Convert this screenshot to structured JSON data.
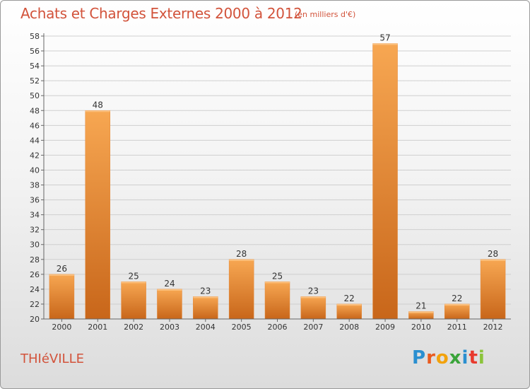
{
  "header": {
    "title": "Achats et Charges Externes 2000 à 2012",
    "subtitle": "(en milliers d'€)"
  },
  "footer": {
    "town": "THIéVILLE",
    "logo": "Proxiti"
  },
  "colors": {
    "title": "#d2533b",
    "bar_light": "#f7a752",
    "bar_dark": "#c8661a",
    "grid": "#cfcfcf",
    "axis": "#666666"
  },
  "chart_data": {
    "type": "bar",
    "title": "Achats et Charges Externes 2000 à 2012",
    "xlabel": "",
    "ylabel": "",
    "categories": [
      "2000",
      "2001",
      "2002",
      "2003",
      "2004",
      "2005",
      "2006",
      "2007",
      "2008",
      "2009",
      "2010",
      "2011",
      "2012"
    ],
    "values": [
      26,
      48,
      25,
      24,
      23,
      28,
      25,
      23,
      22,
      57,
      21,
      22,
      28
    ],
    "ylim": [
      20,
      58
    ],
    "yticks": [
      20,
      22,
      24,
      26,
      28,
      30,
      32,
      34,
      36,
      38,
      40,
      42,
      44,
      46,
      48,
      50,
      52,
      54,
      56,
      58
    ],
    "grid": true,
    "legend": "none"
  }
}
